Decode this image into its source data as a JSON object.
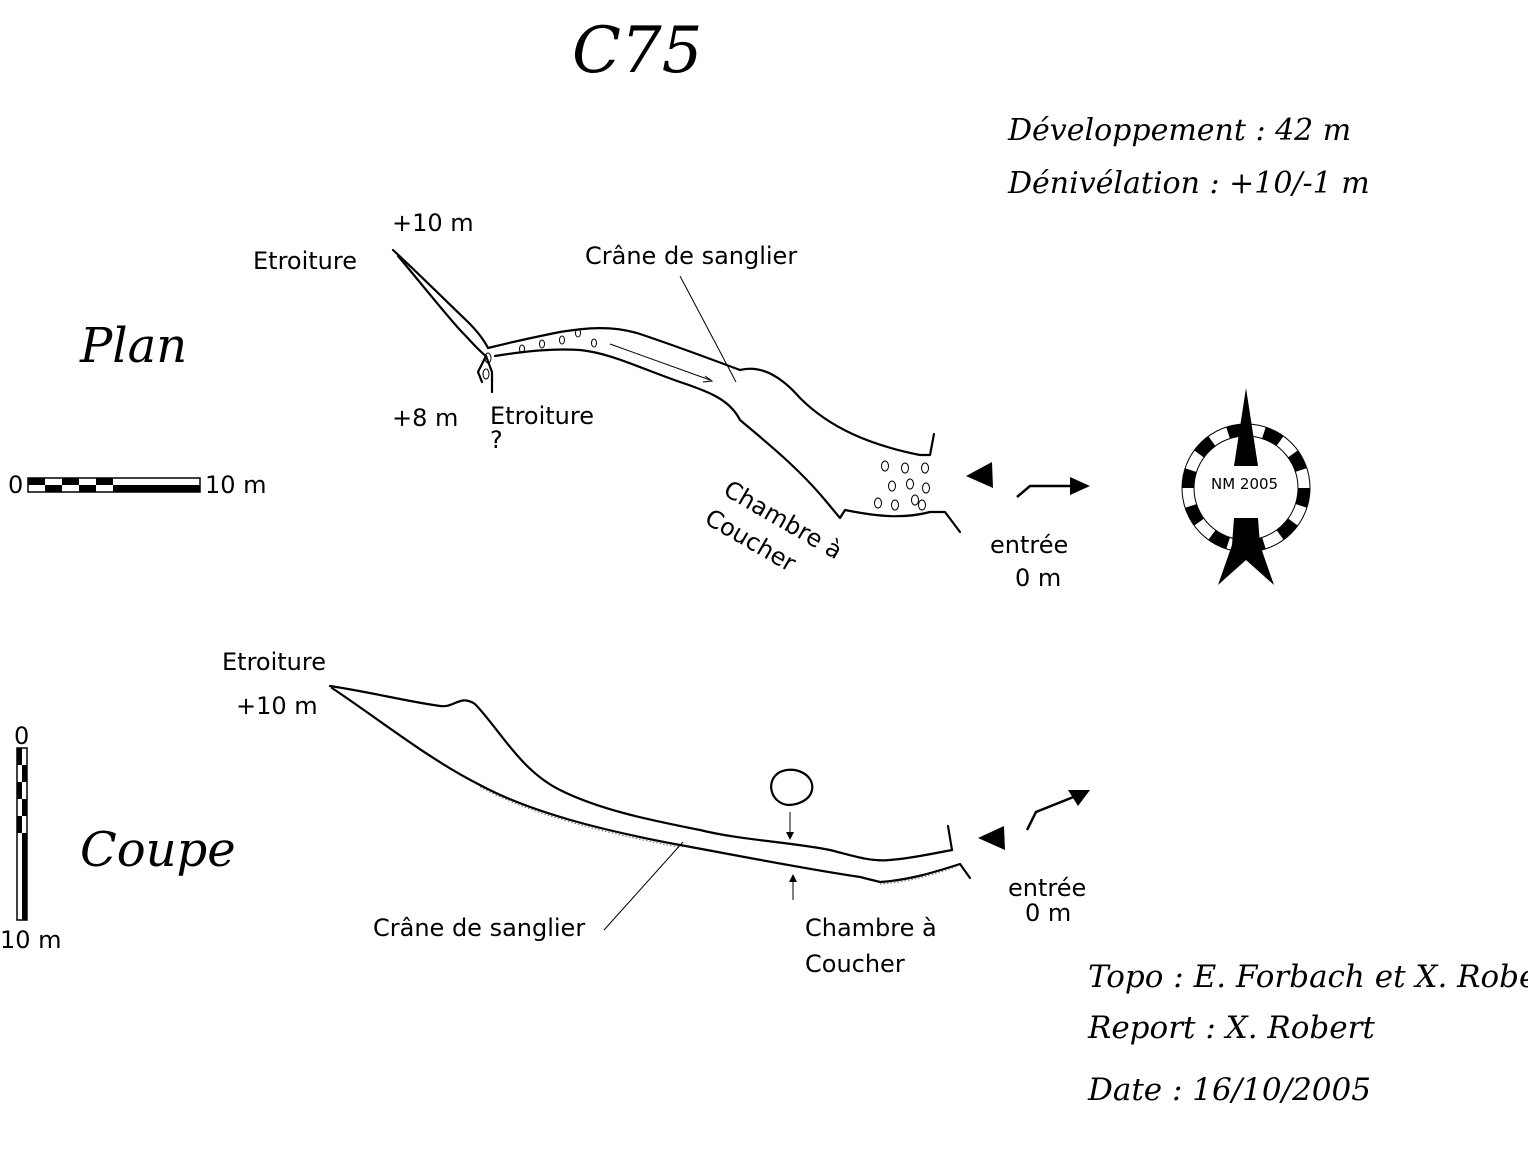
{
  "title": "C75",
  "stats": {
    "development": "Développement : 42 m",
    "elevation": "Dénivélation :  +10/-1 m"
  },
  "plan": {
    "section_label": "Plan",
    "scale_start": "0",
    "scale_end": "10 m",
    "labels": {
      "etroiture_top": "Etroiture",
      "elev_top": "+10 m",
      "elev_low": "+8 m",
      "etroiture_bottom": "Etroiture",
      "question": "?",
      "crane": "Crâne de sanglier",
      "chambre": "Chambre à",
      "coucher": "Coucher",
      "entree": "entrée",
      "entree_elev": "0 m"
    },
    "north_label": "NM 2005"
  },
  "coupe": {
    "section_label": "Coupe",
    "scale_start": "0",
    "scale_end": "10 m",
    "labels": {
      "etroiture": "Etroiture",
      "elev_top": "+10 m",
      "crane": "Crâne de sanglier",
      "chambre": "Chambre à",
      "coucher": "Coucher",
      "entree": "entrée",
      "entree_elev": "0 m"
    }
  },
  "credits": {
    "topo": "Topo : E. Forbach et X. Robert",
    "report": "Report : X. Robert",
    "date": "Date : 16/10/2005"
  }
}
